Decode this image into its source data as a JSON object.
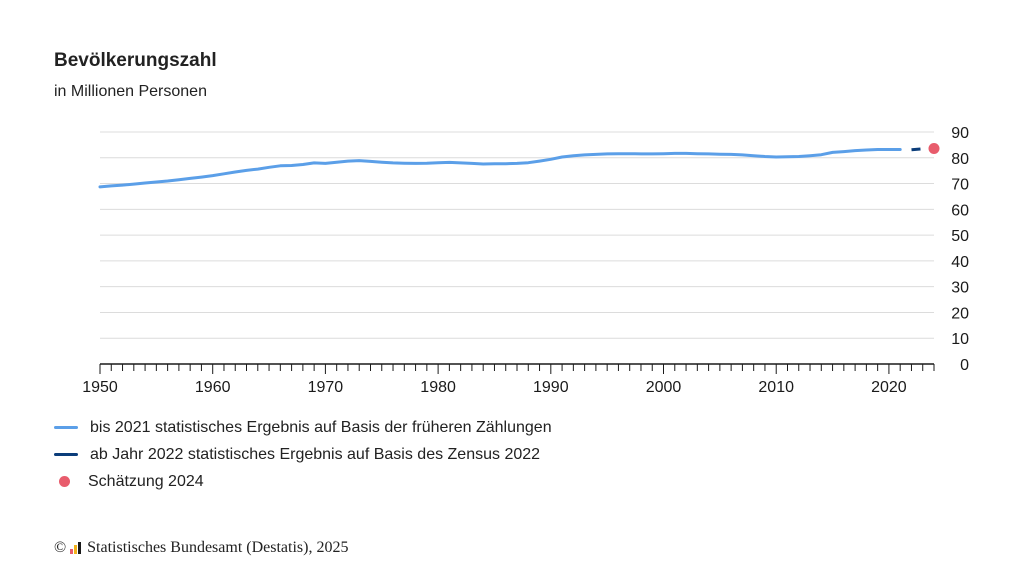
{
  "chart_data": {
    "type": "line",
    "title": "Bevölkerungszahl",
    "subtitle": "in Millionen Personen",
    "xlim": [
      1950,
      2024
    ],
    "ylim": [
      0,
      90
    ],
    "x_ticks": [
      "1950",
      "1960",
      "1970",
      "1980",
      "1990",
      "2000",
      "2010",
      "2020"
    ],
    "y_ticks": [
      "0",
      "10",
      "20",
      "30",
      "40",
      "50",
      "60",
      "70",
      "80",
      "90"
    ],
    "y_axis_position": "right",
    "grid": true,
    "legend_position": "bottom-left",
    "series": [
      {
        "name": "bis 2021 statistisches Ergebnis auf Basis der früheren Zählungen",
        "color": "#5b9fe8",
        "style": "solid",
        "x": [
          1950,
          1951,
          1952,
          1953,
          1954,
          1955,
          1956,
          1957,
          1958,
          1959,
          1960,
          1961,
          1962,
          1963,
          1964,
          1965,
          1966,
          1967,
          1968,
          1969,
          1970,
          1971,
          1972,
          1973,
          1974,
          1975,
          1976,
          1977,
          1978,
          1979,
          1980,
          1981,
          1982,
          1983,
          1984,
          1985,
          1986,
          1987,
          1988,
          1989,
          1990,
          1991,
          1992,
          1993,
          1994,
          1995,
          1996,
          1997,
          1998,
          1999,
          2000,
          2001,
          2002,
          2003,
          2004,
          2005,
          2006,
          2007,
          2008,
          2009,
          2010,
          2011,
          2012,
          2013,
          2014,
          2015,
          2016,
          2017,
          2018,
          2019,
          2020,
          2021
        ],
        "values": [
          68.7,
          69.1,
          69.4,
          69.8,
          70.2,
          70.6,
          71.0,
          71.5,
          72.0,
          72.5,
          73.1,
          73.8,
          74.5,
          75.1,
          75.6,
          76.3,
          76.9,
          77.0,
          77.4,
          78.0,
          77.8,
          78.3,
          78.7,
          78.9,
          78.6,
          78.3,
          78.0,
          77.9,
          77.8,
          77.9,
          78.1,
          78.2,
          78.0,
          77.8,
          77.6,
          77.7,
          77.7,
          77.8,
          78.1,
          78.7,
          79.4,
          80.3,
          80.8,
          81.1,
          81.3,
          81.5,
          81.6,
          81.6,
          81.5,
          81.5,
          81.6,
          81.7,
          81.7,
          81.6,
          81.5,
          81.4,
          81.3,
          81.1,
          80.8,
          80.5,
          80.3,
          80.4,
          80.5,
          80.8,
          81.2,
          82.1,
          82.4,
          82.8,
          83.0,
          83.2,
          83.2,
          83.2
        ]
      },
      {
        "name": "ab Jahr 2022 statistisches Ergebnis auf Basis des Zensus 2022",
        "color": "#0b3d7a",
        "style": "dashed",
        "x": [
          2022,
          2023
        ],
        "values": [
          83.1,
          83.5
        ]
      },
      {
        "name": "Schätzung 2024",
        "color": "#e85c6c",
        "style": "point",
        "x": [
          2024
        ],
        "values": [
          83.6
        ]
      }
    ]
  },
  "footer": {
    "copyright_symbol": "©",
    "source": "Statistisches Bundesamt (Destatis), 2025",
    "logo_colors": [
      "#e85c6c",
      "#f2b31d",
      "#1a1a1a"
    ]
  }
}
